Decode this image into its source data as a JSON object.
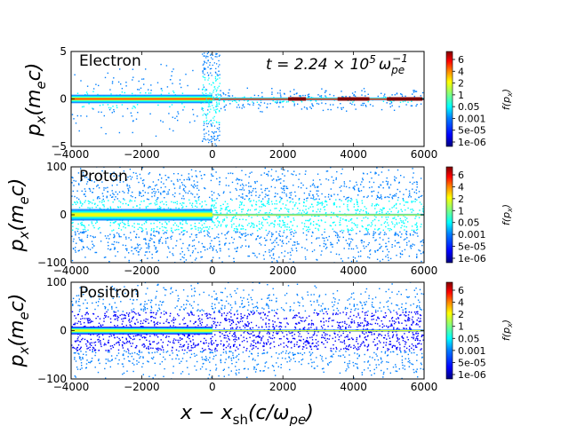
{
  "figure": {
    "xlabel": "x − x",
    "xlabel_sub": "sh",
    "xlabel_unit": "(c/ω",
    "xlabel_unit_sub": "pe",
    "xlabel_close": ")",
    "time_prefix": "t = 2.24 × 10",
    "time_exp": "5",
    "time_symbol": "ω",
    "time_sub": "pe",
    "time_sup": "−1"
  },
  "colormap": [
    "#00007f",
    "#0000ff",
    "#007fff",
    "#00ffff",
    "#7fff7f",
    "#ffff00",
    "#ff7f00",
    "#ff0000",
    "#7f0000"
  ],
  "chart_data": [
    {
      "type": "heatmap",
      "title": "Electron",
      "ylabel": "p_x(m_e c)",
      "ylabel_main": "p",
      "ylabel_sub": "x",
      "ylabel_paren": "(m",
      "ylabel_sub2": "e",
      "ylabel_tail": "c)",
      "xlim": [
        -4000,
        6000
      ],
      "ylim": [
        -5,
        5
      ],
      "x_ticks": [
        -4000,
        -2000,
        0,
        2000,
        4000,
        6000
      ],
      "x_tick_labels": [
        "−4000",
        "−2000",
        "0",
        "2000",
        "4000",
        "6000"
      ],
      "y_ticks": [
        -5,
        0,
        5
      ],
      "y_tick_labels": [
        "−5",
        "0",
        "5"
      ],
      "shock_x": 0,
      "upstream_core_width": 0.45,
      "upstream_halo_width": 1.6,
      "downstream_core_width": 0.15,
      "downstream_halo_width": 0.5,
      "colorbar": {
        "label": "f(p_x)",
        "label_main": "f(p",
        "label_sub": "x",
        "label_tail": ")",
        "ticks": [
          "6",
          "4",
          "2",
          "1",
          "0.05",
          "0.001",
          "5e-05",
          "1e-06"
        ]
      }
    },
    {
      "type": "heatmap",
      "title": "Proton",
      "ylabel": "p_x(m_e c)",
      "ylabel_main": "p",
      "ylabel_sub": "x",
      "ylabel_paren": "(m",
      "ylabel_sub2": "e",
      "ylabel_tail": "c)",
      "xlim": [
        -4000,
        6000
      ],
      "ylim": [
        -100,
        100
      ],
      "x_ticks": [
        -4000,
        -2000,
        0,
        2000,
        4000,
        6000
      ],
      "x_tick_labels": [
        "−4000",
        "−2000",
        "0",
        "2000",
        "4000",
        "6000"
      ],
      "y_ticks": [
        -100,
        0,
        100
      ],
      "y_tick_labels": [
        "−100",
        "0",
        "100"
      ],
      "shock_x": 0,
      "upstream_core_width": 12,
      "upstream_halo_width": 55,
      "downstream_core_width": 2,
      "downstream_halo_width": 55,
      "colorbar": {
        "label": "f(p_x)",
        "label_main": "f(p",
        "label_sub": "x",
        "label_tail": ")",
        "ticks": [
          "6",
          "4",
          "2",
          "1",
          "0.05",
          "0.001",
          "5e-05",
          "1e-06"
        ]
      }
    },
    {
      "type": "heatmap",
      "title": "Positron",
      "ylabel": "p_x(m_e c)",
      "ylabel_main": "p",
      "ylabel_sub": "x",
      "ylabel_paren": "(m",
      "ylabel_sub2": "e",
      "ylabel_tail": "c)",
      "xlim": [
        -4000,
        6000
      ],
      "ylim": [
        -100,
        100
      ],
      "x_ticks": [
        -4000,
        -2000,
        0,
        2000,
        4000,
        6000
      ],
      "x_tick_labels": [
        "−4000",
        "−2000",
        "0",
        "2000",
        "4000",
        "6000"
      ],
      "y_ticks": [
        -100,
        0,
        100
      ],
      "y_tick_labels": [
        "−100",
        "0",
        "100"
      ],
      "shock_x": 0,
      "upstream_core_width": 8,
      "upstream_halo_width": 45,
      "downstream_core_width": 2,
      "downstream_halo_width": 45,
      "colorbar": {
        "label": "f(p_x)",
        "label_main": "f(p",
        "label_sub": "x",
        "label_tail": ")",
        "ticks": [
          "6",
          "4",
          "2",
          "1",
          "0.05",
          "0.001",
          "5e-05",
          "1e-06"
        ]
      }
    }
  ]
}
